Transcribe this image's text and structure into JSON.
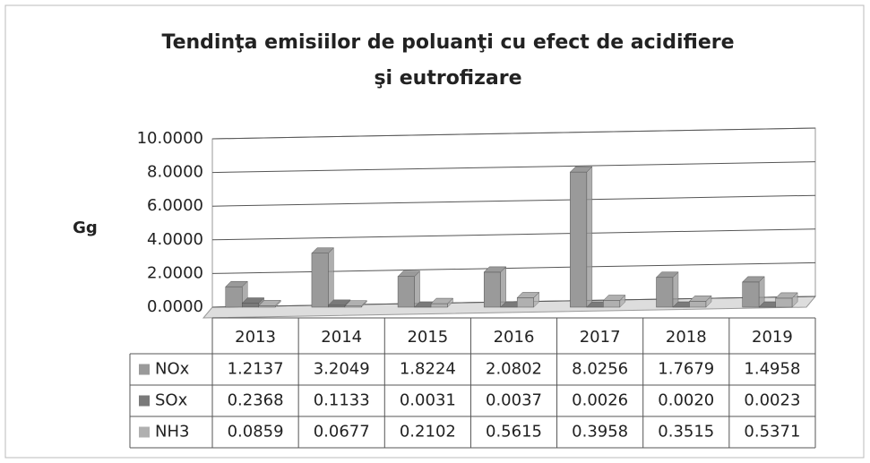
{
  "chart_data": {
    "type": "bar",
    "title": "Tendinţa emisiilor de poluanţi cu efect de acidifiere şi eutrofizare",
    "y_label": "Gg",
    "categories": [
      "2013",
      "2014",
      "2015",
      "2016",
      "2017",
      "2018",
      "2019"
    ],
    "series": [
      {
        "name": "NOx",
        "color": "#9a9a9a",
        "values": [
          1.2137,
          3.2049,
          1.8224,
          2.0802,
          8.0256,
          1.7679,
          1.4958
        ],
        "value_labels": [
          "1.2137",
          "3.2049",
          "1.8224",
          "2.0802",
          "8.0256",
          "1.7679",
          "1.4958"
        ]
      },
      {
        "name": "SOx",
        "color": "#7a7a7a",
        "values": [
          0.2368,
          0.1133,
          0.0031,
          0.0037,
          0.0026,
          0.002,
          0.0023
        ],
        "value_labels": [
          "0.2368",
          "0.1133",
          "0.0031",
          "0.0037",
          "0.0026",
          "0.0020",
          "0.0023"
        ]
      },
      {
        "name": "NH3",
        "color": "#b0b0b0",
        "values": [
          0.0859,
          0.0677,
          0.2102,
          0.5615,
          0.3958,
          0.3515,
          0.5371
        ],
        "value_labels": [
          "0.0859",
          "0.0677",
          "0.2102",
          "0.5615",
          "0.3958",
          "0.3515",
          "0.5371"
        ]
      }
    ],
    "ylim": [
      0,
      10
    ],
    "yticks": [
      {
        "value": 0,
        "label": "0.0000"
      },
      {
        "value": 2,
        "label": "2.0000"
      },
      {
        "value": 4,
        "label": "4.0000"
      },
      {
        "value": 6,
        "label": "6.0000"
      },
      {
        "value": 8,
        "label": "8.0000"
      },
      {
        "value": 10,
        "label": "10.0000"
      }
    ],
    "grid": true
  }
}
